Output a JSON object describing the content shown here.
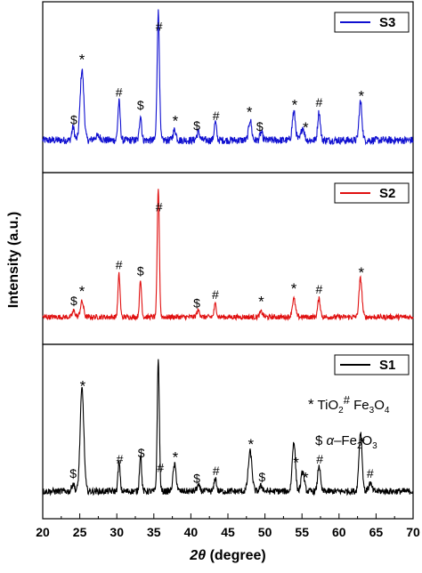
{
  "chart_data": {
    "type": "line",
    "xlabel_symbol": "2θ",
    "xlabel_unit": " (degree)",
    "ylabel": "Intensity (a.u.)",
    "xlim": [
      20,
      70
    ],
    "x_ticks": [
      20,
      25,
      30,
      35,
      40,
      45,
      50,
      55,
      60,
      65,
      70
    ],
    "x_tick_labels": [
      "20",
      "25",
      "30",
      "35",
      "40",
      "45",
      "50",
      "55",
      "60",
      "65",
      "70"
    ],
    "grid": false,
    "legend_placement": "top-right",
    "legend_block": {
      "tio2_symbol": "*",
      "tio2_label": "TiO",
      "tio2_sub": "2",
      "fe3o4_symbol": "#",
      "fe3o4_label": "Fe",
      "fe3o4_sub1": "3",
      "fe3o4_o": "O",
      "fe3o4_sub2": "4",
      "fe2o3_symbol": "$",
      "fe2o3_label_alpha": "α",
      "fe2o3_label": "–Fe",
      "fe2o3_sub1": "2",
      "fe2o3_o": "O",
      "fe2o3_sub2": "3"
    },
    "series": [
      {
        "name": "S3",
        "color": "#1010d0",
        "baseline": 0.1,
        "noise": 0.03,
        "peaks": [
          [
            24.1,
            0.1,
            0.25
          ],
          [
            25.3,
            0.55,
            0.35
          ],
          [
            27.4,
            0.03,
            0.6
          ],
          [
            30.3,
            0.3,
            0.22
          ],
          [
            33.2,
            0.2,
            0.2
          ],
          [
            35.6,
            1.0,
            0.22
          ],
          [
            37.8,
            0.08,
            0.3
          ],
          [
            41.0,
            0.06,
            0.3
          ],
          [
            43.3,
            0.14,
            0.22
          ],
          [
            48.0,
            0.16,
            0.28
          ],
          [
            49.5,
            0.06,
            0.25
          ],
          [
            53.9,
            0.22,
            0.3
          ],
          [
            55.1,
            0.1,
            0.3
          ],
          [
            57.3,
            0.22,
            0.25
          ],
          [
            62.9,
            0.3,
            0.28
          ]
        ],
        "markers": [
          [
            "$",
            24.2
          ],
          [
            "*",
            25.3
          ],
          [
            "#",
            30.3
          ],
          [
            "$",
            33.2
          ],
          [
            "#",
            35.7
          ],
          [
            "*",
            37.9
          ],
          [
            "$",
            40.8
          ],
          [
            "#",
            43.4
          ],
          [
            "*",
            47.9
          ],
          [
            "$",
            49.3
          ],
          [
            "*",
            54.0
          ],
          [
            "*",
            55.5
          ],
          [
            "#",
            57.3
          ],
          [
            "*",
            63.0
          ]
        ]
      },
      {
        "name": "S2",
        "color": "#e01010",
        "baseline": 0.06,
        "noise": 0.02,
        "peaks": [
          [
            24.2,
            0.05,
            0.25
          ],
          [
            25.3,
            0.12,
            0.3
          ],
          [
            30.3,
            0.33,
            0.2
          ],
          [
            33.2,
            0.28,
            0.2
          ],
          [
            35.6,
            1.0,
            0.2
          ],
          [
            41.0,
            0.05,
            0.3
          ],
          [
            43.3,
            0.1,
            0.22
          ],
          [
            49.5,
            0.04,
            0.3
          ],
          [
            53.9,
            0.14,
            0.3
          ],
          [
            57.3,
            0.14,
            0.25
          ],
          [
            62.9,
            0.3,
            0.28
          ]
        ],
        "markers": [
          [
            "$",
            24.2
          ],
          [
            "*",
            25.3
          ],
          [
            "#",
            30.3
          ],
          [
            "$",
            33.2
          ],
          [
            "#",
            35.7
          ],
          [
            "$",
            40.8
          ],
          [
            "#",
            43.3
          ],
          [
            "*",
            49.5
          ],
          [
            "*",
            53.9
          ],
          [
            "#",
            57.3
          ],
          [
            "*",
            63.0
          ]
        ]
      },
      {
        "name": "S1",
        "color": "#000000",
        "baseline": 0.06,
        "noise": 0.025,
        "peaks": [
          [
            24.1,
            0.06,
            0.25
          ],
          [
            25.3,
            0.78,
            0.35
          ],
          [
            30.3,
            0.22,
            0.2
          ],
          [
            33.2,
            0.28,
            0.2
          ],
          [
            35.6,
            1.0,
            0.2
          ],
          [
            37.8,
            0.2,
            0.3
          ],
          [
            41.0,
            0.04,
            0.3
          ],
          [
            43.3,
            0.1,
            0.22
          ],
          [
            48.0,
            0.3,
            0.35
          ],
          [
            49.5,
            0.04,
            0.3
          ],
          [
            53.9,
            0.38,
            0.3
          ],
          [
            55.1,
            0.15,
            0.3
          ],
          [
            57.3,
            0.2,
            0.25
          ],
          [
            62.9,
            0.45,
            0.3
          ],
          [
            64.2,
            0.06,
            0.3
          ]
        ],
        "markers": [
          [
            "$",
            24.1
          ],
          [
            "*",
            25.4
          ],
          [
            "#",
            30.4
          ],
          [
            "$",
            33.3
          ],
          [
            "#",
            35.9
          ],
          [
            "*",
            37.9
          ],
          [
            "$",
            40.8
          ],
          [
            "#",
            43.4
          ],
          [
            "*",
            48.1
          ],
          [
            "$",
            49.6
          ],
          [
            "*",
            54.2
          ],
          [
            "*",
            55.5
          ],
          [
            "#",
            57.4
          ],
          [
            "*",
            63.1
          ],
          [
            "#",
            64.2
          ]
        ]
      }
    ]
  }
}
